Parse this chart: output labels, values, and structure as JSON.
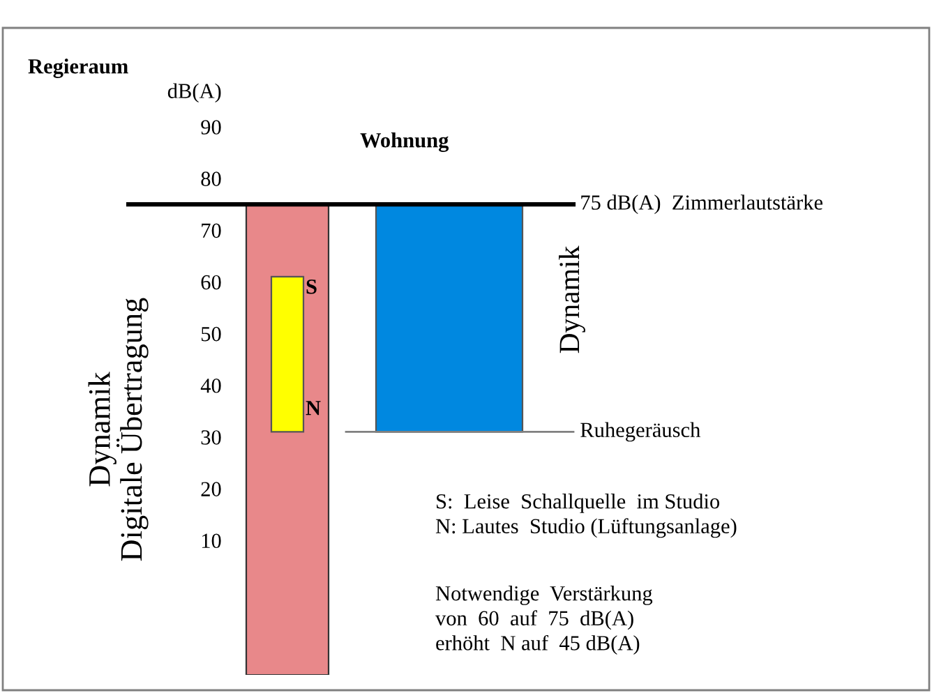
{
  "chart_data": {
    "type": "bar",
    "ylabel": "Dynamik\nDigitale Übertragung",
    "categories": [
      null,
      null
    ],
    "series": [
      {
        "color": "#e8888a",
        "values": [
          91,
          null
        ],
        "base": [
          -16,
          null
        ]
      },
      {
        "color": "#ffff00",
        "values": [
          30,
          null
        ],
        "base": [
          31,
          null
        ]
      },
      {
        "color": "#0088e0",
        "values": [
          null,
          44
        ],
        "base": [
          null,
          31
        ]
      }
    ],
    "ylim": [
      -16,
      97
    ],
    "yticks": [
      10,
      20,
      30,
      40,
      50,
      60,
      70,
      80,
      90,
      {
        "value": 97,
        "label": "dB(A)"
      }
    ],
    "ref_lines": [
      {
        "axis": "y",
        "value": 75,
        "label": "75 dB(A)  Zimmerlautstärke",
        "color": "#000000"
      },
      {
        "axis": "y",
        "value": 31,
        "label": "Ruhegeräusch",
        "color": "#808080"
      }
    ],
    "annotations": [
      "Regieraum",
      "Wohnung",
      "S",
      "N",
      "Dynamik",
      "S:  Leise  Schallquelle  im Studio\nN: Lautes  Studio (Lüftungsanlage)",
      "Notwendige  Verstärkung\nvon  60  auf  75  dB(A)\nerhöht  N auf  45 dB(A)"
    ],
    "grid": false
  }
}
